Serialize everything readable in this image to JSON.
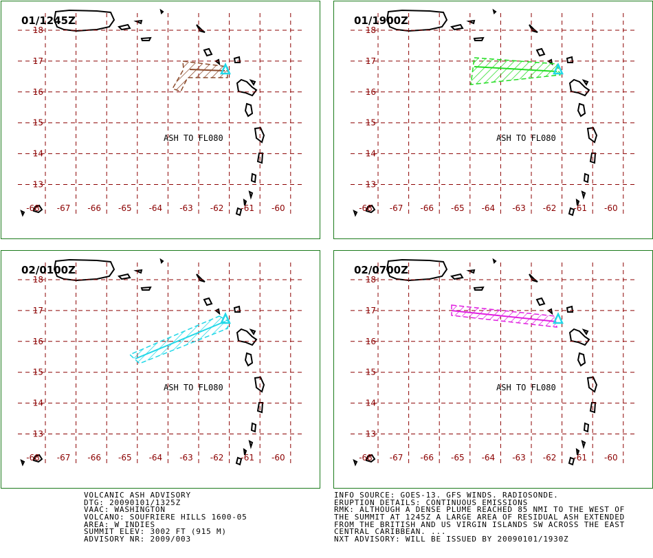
{
  "panels": [
    {
      "label": "01/1245Z",
      "annotation": "ASH TO FL080",
      "color": "#8b4a2b"
    },
    {
      "label": "01/1900Z",
      "annotation": "ASH TO FL080",
      "color": "#22dd22"
    },
    {
      "label": "02/0100Z",
      "annotation": "ASH TO FL080",
      "color": "#22d8e8"
    },
    {
      "label": "02/0700Z",
      "annotation": "ASH TO FL080",
      "color": "#e020e0"
    }
  ],
  "lat_ticks": [
    18,
    17,
    16,
    15,
    14,
    13
  ],
  "lon_ticks": [
    -68,
    -67,
    -66,
    -65,
    -64,
    -63,
    -62,
    -61,
    -60
  ],
  "advisory": {
    "left": [
      "VOLCANIC ASH ADVISORY",
      "DTG: 20090101/1325Z",
      "VAAC: WASHINGTON",
      "VOLCANO: SOUFRIERE HILLS 1600-05",
      "AREA: W_INDIES",
      "SUMMIT ELEV: 3002 FT (915 M)",
      "ADVISORY NR: 2009/003"
    ],
    "right": [
      "INFO SOURCE: GOES-13. GFS WINDS. RADIOSONDE.",
      "ERUPTION DETAILS: CONTINUOUS EMISSIONS",
      "RMK: ALTHOUGH A DENSE PLUME REACHED 85 NMI TO THE WEST OF",
      "THE SUMMIT AT 1245Z A LARGE AREA OF RESIDUAL ASH EXTENDED",
      "FROM THE BRITISH AND US VIRGIN ISLANDS SW ACROSS THE EAST",
      "CENTRAL CARIBBEAN. ...",
      "NXT ADVISORY: WILL BE ISSUED BY 20090101/1930Z"
    ]
  }
}
